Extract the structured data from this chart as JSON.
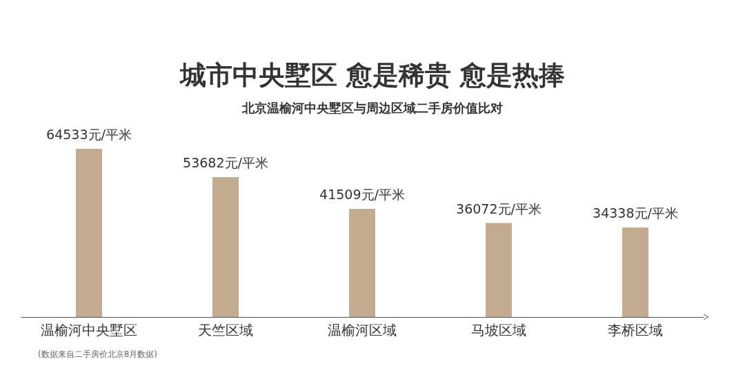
{
  "chart_data": {
    "type": "bar",
    "title": "城市中央墅区 愈是稀贵 愈是热捧",
    "subtitle": "北京温榆河中央墅区与周边区域二手房价值比对",
    "categories": [
      "温榆河中央墅区",
      "天竺区域",
      "温榆河区域",
      "马坡区域",
      "李桥区域"
    ],
    "values": [
      64533,
      53682,
      41509,
      36072,
      34338
    ],
    "value_labels": [
      "64533元/平米",
      "53682元/平米",
      "41509元/平米",
      "36072元/平米",
      "34338元/平米"
    ],
    "color": "#c2ab91",
    "annotations": [
      "(数据来自二手房价北京8月数据)"
    ]
  }
}
